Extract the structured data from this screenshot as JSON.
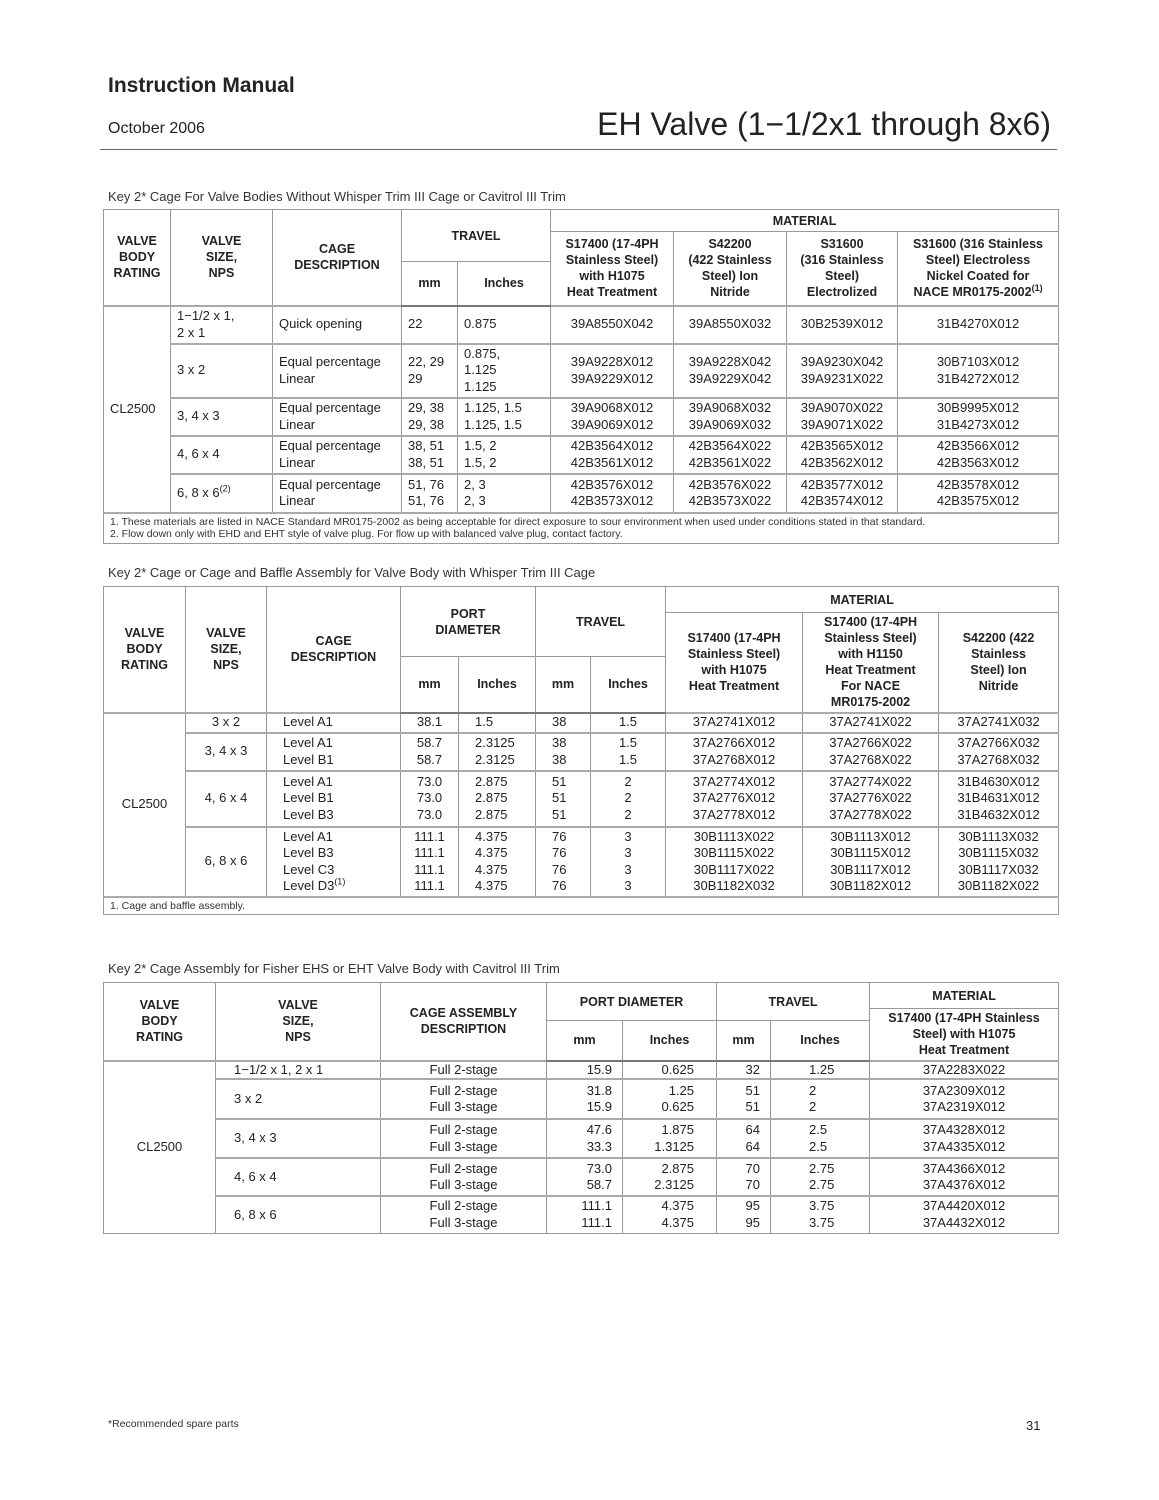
{
  "header": {
    "manual_title": "Instruction Manual",
    "date": "October 2006",
    "doc_title": "EH Valve (1−1/2x1 through 8x6)"
  },
  "table1": {
    "caption": "Key 2* Cage For Valve Bodies Without Whisper Trim III Cage or Cavitrol III Trim",
    "headers": {
      "body_rating": "VALVE\nBODY\nRATING",
      "size": "VALVE\nSIZE,\nNPS",
      "cage": "CAGE\nDESCRIPTION",
      "travel": "TRAVEL",
      "mm": "mm",
      "inches": "Inches",
      "material": "MATERIAL",
      "mat1": "S17400 (17-4PH\nStainless Steel)\nwith H1075\nHeat Treatment",
      "mat2": "S42200\n(422 Stainless\nSteel) Ion\nNitride",
      "mat3": "S31600\n(316 Stainless\nSteel)\nElectrolized",
      "mat4": "S31600 (316 Stainless\nSteel) Electroless\nNickel Coated for\nNACE MR0175-2002",
      "mat4_sup": "(1)"
    },
    "body_rating": "CL2500",
    "rows": [
      {
        "size": "1−1/2 x 1,\n2 x 1",
        "size_sup": "",
        "cage": "Quick opening",
        "mm": "22",
        "inches": "0.875",
        "m1": "39A8550X042",
        "m2": "39A8550X032",
        "m3": "30B2539X012",
        "m4": "31B4270X012"
      },
      {
        "size": "3 x 2",
        "size_sup": "",
        "cage": "Equal percentage\nLinear",
        "mm": "22, 29\n29",
        "inches": "0.875,\n1.125\n1.125",
        "m1": "39A9228X012\n39A9229X012",
        "m2": "39A9228X042\n39A9229X042",
        "m3": "39A9230X042\n39A9231X022",
        "m4": "30B7103X012\n31B4272X012"
      },
      {
        "size": "3, 4 x 3",
        "size_sup": "",
        "cage": "Equal percentage\nLinear",
        "mm": "29, 38\n29, 38",
        "inches": "1.125, 1.5\n1.125, 1.5",
        "m1": "39A9068X012\n39A9069X012",
        "m2": "39A9068X032\n39A9069X032",
        "m3": "39A9070X022\n39A9071X022",
        "m4": "30B9995X012\n31B4273X012"
      },
      {
        "size": "4, 6 x 4",
        "size_sup": "",
        "cage": "Equal percentage\nLinear",
        "mm": "38, 51\n38, 51",
        "inches": "1.5, 2\n1.5, 2",
        "m1": "42B3564X012\n42B3561X012",
        "m2": "42B3564X022\n42B3561X022",
        "m3": "42B3565X012\n42B3562X012",
        "m4": "42B3566X012\n42B3563X012"
      },
      {
        "size": "6, 8 x 6",
        "size_sup": "(2)",
        "cage": "Equal percentage\nLinear",
        "mm": "51, 76\n51, 76",
        "inches": "2, 3\n2, 3",
        "m1": "42B3576X012\n42B3573X012",
        "m2": "42B3576X022\n42B3573X022",
        "m3": "42B3577X012\n42B3574X012",
        "m4": "42B3578X012\n42B3575X012"
      }
    ],
    "notes": "1.  These materials are listed in NACE Standard MR0175-2002 as being acceptable for direct exposure to sour environment when used under conditions stated in that standard.\n2.  Flow down only with EHD and EHT style of valve plug. For flow up with balanced valve plug, contact factory."
  },
  "table2": {
    "caption": "Key 2* Cage or Cage and Baffle Assembly for Valve Body with Whisper Trim III Cage",
    "headers": {
      "body_rating": "VALVE\nBODY\nRATING",
      "size": "VALVE\nSIZE,\nNPS",
      "cage": "CAGE\nDESCRIPTION",
      "port": "PORT\nDIAMETER",
      "travel": "TRAVEL",
      "mm": "mm",
      "inches": "Inches",
      "material": "MATERIAL",
      "mat1": "S17400 (17-4PH\nStainless Steel)\nwith H1075\nHeat Treatment",
      "mat2": "S17400 (17-4PH\nStainless Steel)\nwith H1150\nHeat Treatment\nFor NACE\nMR0175-2002",
      "mat3": "S42200 (422\nStainless\nSteel) Ion\nNitride"
    },
    "body_rating": "CL2500",
    "rows": [
      {
        "size": "3 x 2",
        "cage": "Level A1",
        "cage_sup": "",
        "pmm": "38.1",
        "pin": "1.5",
        "tmm": "38",
        "tin": "1.5",
        "m1": "37A2741X012",
        "m2": "37A2741X022",
        "m3": "37A2741X032"
      },
      {
        "size": "3, 4 x 3",
        "cage": "Level A1\nLevel B1",
        "cage_sup": "",
        "pmm": "58.7\n58.7",
        "pin": "2.3125\n2.3125",
        "tmm": "38\n38",
        "tin": "1.5\n1.5",
        "m1": "37A2766X012\n37A2768X012",
        "m2": "37A2766X022\n37A2768X022",
        "m3": "37A2766X032\n37A2768X032"
      },
      {
        "size": "4, 6 x 4",
        "cage": "Level A1\nLevel B1\nLevel B3",
        "cage_sup": "",
        "pmm": "73.0\n73.0\n73.0",
        "pin": "2.875\n2.875\n2.875",
        "tmm": "51\n51\n51",
        "tin": "2\n2\n2",
        "m1": "37A2774X012\n37A2776X012\n37A2778X012",
        "m2": "37A2774X022\n37A2776X022\n37A2778X022",
        "m3": "31B4630X012\n31B4631X012\n31B4632X012"
      },
      {
        "size": "6, 8 x 6",
        "cage": "Level A1\nLevel B3\nLevel C3\nLevel D3",
        "cage_sup": "(1)",
        "pmm": "111.1\n111.1\n111.1\n111.1",
        "pin": "4.375\n4.375\n4.375\n4.375",
        "tmm": "76\n76\n76\n76",
        "tin": "3\n3\n3\n3",
        "m1": "30B1113X022\n30B1115X022\n30B1117X022\n30B1182X032",
        "m2": "30B1113X012\n30B1115X012\n30B1117X012\n30B1182X012",
        "m3": "30B1113X032\n30B1115X032\n30B1117X032\n30B1182X022"
      }
    ],
    "notes": "1.  Cage and baffle assembly."
  },
  "table3": {
    "caption": "Key 2* Cage Assembly for Fisher EHS or EHT Valve Body with Cavitrol III Trim",
    "headers": {
      "body_rating": "VALVE\nBODY\nRATING",
      "size": "VALVE\nSIZE,\nNPS",
      "cage": "CAGE ASSEMBLY\nDESCRIPTION",
      "port": "PORT DIAMETER",
      "travel": "TRAVEL",
      "mm": "mm",
      "inches": "Inches",
      "material": "MATERIAL",
      "mat1": "S17400 (17-4PH Stainless\nSteel) with H1075\nHeat Treatment"
    },
    "body_rating": "CL2500",
    "rows": [
      {
        "size": "1−1/2 x 1, 2 x 1",
        "cage": "Full 2-stage",
        "pmm": "15.9",
        "pin": "0.625",
        "tmm": "32",
        "tin": "1.25",
        "m1": "37A2283X022"
      },
      {
        "size": "3 x 2",
        "cage": "Full 2-stage\nFull 3-stage",
        "pmm": "31.8\n15.9",
        "pin": "1.25\n0.625",
        "tmm": "51\n51",
        "tin": "2\n2",
        "m1": "37A2309X012\n37A2319X012"
      },
      {
        "size": "3, 4 x 3",
        "cage": "Full 2-stage\nFull 3-stage",
        "pmm": "47.6\n33.3",
        "pin": "1.875\n1.3125",
        "tmm": "64\n64",
        "tin": "2.5\n2.5",
        "m1": "37A4328X012\n37A4335X012"
      },
      {
        "size": "4, 6 x 4",
        "cage": "Full 2-stage\nFull 3-stage",
        "pmm": "73.0\n58.7",
        "pin": "2.875\n2.3125",
        "tmm": "70\n70",
        "tin": "2.75\n2.75",
        "m1": "37A4366X012\n37A4376X012"
      },
      {
        "size": "6, 8 x 6",
        "cage": "Full 2-stage\nFull 3-stage",
        "pmm": "111.1\n111.1",
        "pin": "4.375\n4.375",
        "tmm": "95\n95",
        "tin": "3.75\n3.75",
        "m1": "37A4420X012\n37A4432X012"
      }
    ]
  },
  "footer": {
    "note": "*Recommended spare parts",
    "page_number": "31"
  }
}
